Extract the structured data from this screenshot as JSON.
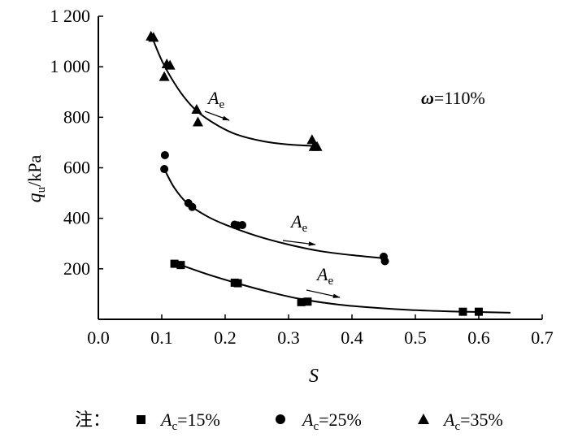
{
  "chart_data": {
    "type": "scatter",
    "xlabel": "S",
    "ylabel": {
      "main": "q",
      "sub": "u",
      "unit": "/kPa"
    },
    "xlim": [
      0,
      0.7
    ],
    "ylim": [
      0,
      1200
    ],
    "x_ticks": [
      {
        "v": 0.0,
        "label": "0.0"
      },
      {
        "v": 0.1,
        "label": "0.1"
      },
      {
        "v": 0.2,
        "label": "0.2"
      },
      {
        "v": 0.3,
        "label": "0.3"
      },
      {
        "v": 0.4,
        "label": "0.4"
      },
      {
        "v": 0.5,
        "label": "0.5"
      },
      {
        "v": 0.6,
        "label": "0.6"
      },
      {
        "v": 0.7,
        "label": "0.7"
      }
    ],
    "y_ticks": [
      {
        "v": 200,
        "label": "200"
      },
      {
        "v": 400,
        "label": "400"
      },
      {
        "v": 600,
        "label": "600"
      },
      {
        "v": 800,
        "label": "800"
      },
      {
        "v": 1000,
        "label": "1 000"
      },
      {
        "v": 1200,
        "label": "1 200"
      }
    ],
    "grid": false,
    "annotation": {
      "omega_symbol": "ω",
      "text": "=110%"
    },
    "arrow_label": {
      "main": "A",
      "sub": "e"
    },
    "legend": {
      "prefix": "注：",
      "position": "bottom"
    },
    "series": [
      {
        "name_main": "A",
        "name_sub": "c",
        "name_rest": "=15%",
        "marker": "square",
        "points": [
          [
            0.12,
            220
          ],
          [
            0.13,
            215
          ],
          [
            0.215,
            145
          ],
          [
            0.22,
            143
          ],
          [
            0.32,
            68
          ],
          [
            0.33,
            70
          ],
          [
            0.575,
            30
          ],
          [
            0.6,
            30
          ]
        ],
        "fit": [
          [
            0.13,
            215
          ],
          [
            0.17,
            180
          ],
          [
            0.22,
            142
          ],
          [
            0.27,
            108
          ],
          [
            0.32,
            80
          ],
          [
            0.38,
            58
          ],
          [
            0.44,
            45
          ],
          [
            0.5,
            36
          ],
          [
            0.56,
            31
          ],
          [
            0.6,
            29
          ],
          [
            0.65,
            26
          ]
        ]
      },
      {
        "name_main": "A",
        "name_sub": "c",
        "name_rest": "=25%",
        "marker": "circle",
        "points": [
          [
            0.105,
            650
          ],
          [
            0.104,
            595
          ],
          [
            0.142,
            460
          ],
          [
            0.148,
            445
          ],
          [
            0.215,
            375
          ],
          [
            0.22,
            372
          ],
          [
            0.227,
            373
          ],
          [
            0.45,
            248
          ],
          [
            0.452,
            230
          ]
        ],
        "fit": [
          [
            0.105,
            590
          ],
          [
            0.12,
            520
          ],
          [
            0.14,
            460
          ],
          [
            0.17,
            410
          ],
          [
            0.2,
            375
          ],
          [
            0.25,
            330
          ],
          [
            0.3,
            296
          ],
          [
            0.35,
            270
          ],
          [
            0.4,
            254
          ],
          [
            0.45,
            242
          ]
        ]
      },
      {
        "name_main": "A",
        "name_sub": "c",
        "name_rest": "=35%",
        "marker": "triangle",
        "points": [
          [
            0.083,
            1120
          ],
          [
            0.087,
            1115
          ],
          [
            0.104,
            960
          ],
          [
            0.108,
            1010
          ],
          [
            0.113,
            1005
          ],
          [
            0.155,
            830
          ],
          [
            0.157,
            780
          ],
          [
            0.337,
            710
          ],
          [
            0.34,
            683
          ],
          [
            0.345,
            683
          ]
        ],
        "fit": [
          [
            0.085,
            1115
          ],
          [
            0.1,
            1025
          ],
          [
            0.12,
            935
          ],
          [
            0.14,
            865
          ],
          [
            0.16,
            815
          ],
          [
            0.19,
            765
          ],
          [
            0.22,
            730
          ],
          [
            0.26,
            705
          ],
          [
            0.3,
            692
          ],
          [
            0.345,
            686
          ]
        ]
      }
    ]
  }
}
